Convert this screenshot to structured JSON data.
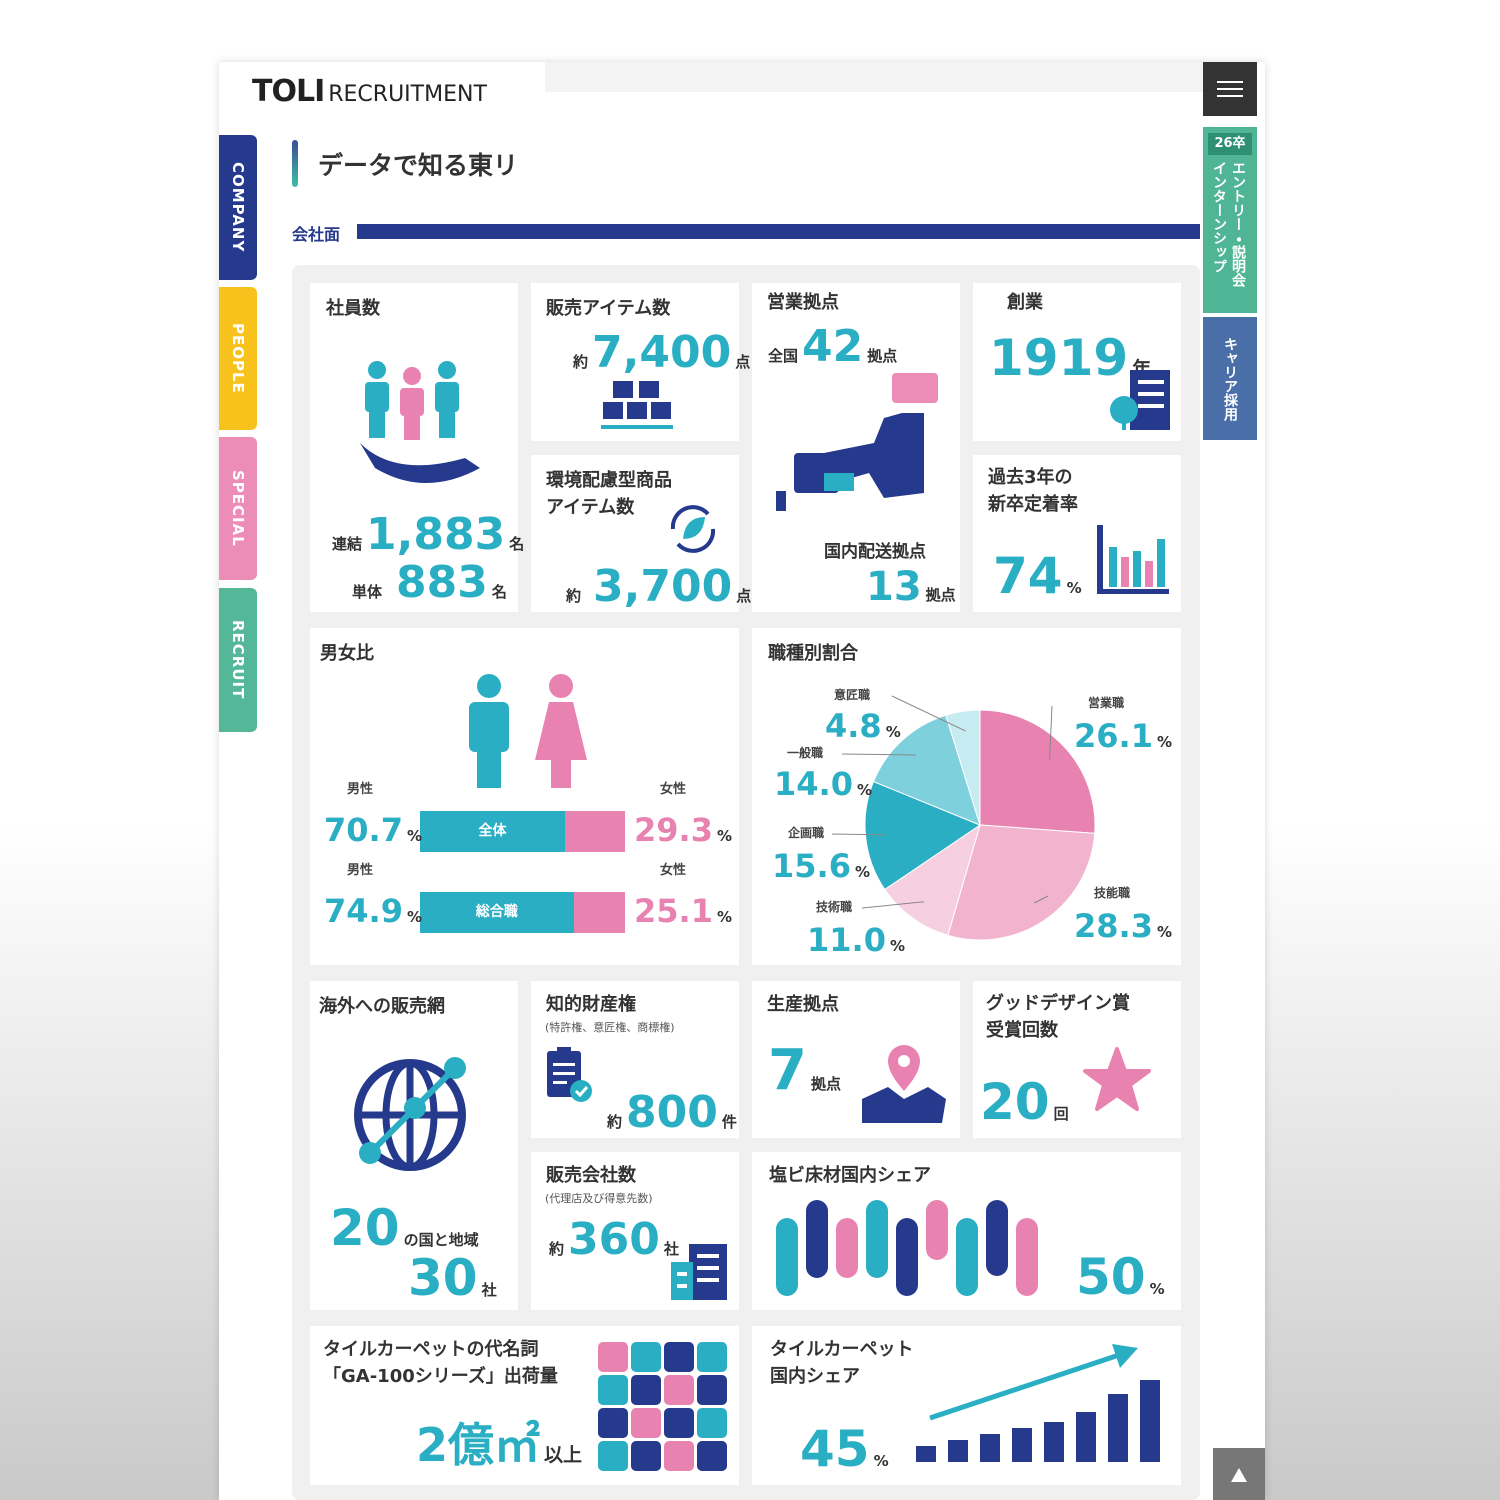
{
  "header": {
    "logo_main": "TOLI",
    "logo_sub": "RECRUITMENT"
  },
  "side_nav": [
    "COMPANY",
    "PEOPLE",
    "SPECIAL",
    "RECRUIT"
  ],
  "right_nav": {
    "badge": "26卒",
    "entry_line1": "エントリー・説明会",
    "entry_line2": "インターンシップ",
    "career": "キャリア採用"
  },
  "page_title": "データで知る東リ",
  "section": "会社面",
  "employees": {
    "title": "社員数",
    "rows": [
      {
        "label": "連結",
        "value": "1,883",
        "unit": "名"
      },
      {
        "label": "単体",
        "value": "883",
        "unit": "名"
      }
    ]
  },
  "items": {
    "title": "販売アイテム数",
    "prefix": "約",
    "value": "7,400",
    "unit": "点"
  },
  "eco": {
    "title": [
      "環境配慮型商品",
      "アイテム数"
    ],
    "prefix": "約",
    "value": "3,700",
    "unit": "点"
  },
  "offices": {
    "title": "営業拠点",
    "prefix": "全国",
    "value": "42",
    "unit": "拠点",
    "sub_title": "国内配送拠点",
    "sub_value": "13",
    "sub_unit": "拠点"
  },
  "founded": {
    "title": "創業",
    "value": "1919",
    "unit": "年"
  },
  "retention": {
    "title": [
      "過去3年の",
      "新卒定着率"
    ],
    "value": "74",
    "unit": "%"
  },
  "gender": {
    "title": "男女比",
    "unit": "%",
    "male_color": "#2aaec3",
    "female_color": "#e882b0",
    "rows": [
      {
        "label": "全体",
        "male_label": "男性",
        "female_label": "女性",
        "male": 70.7,
        "female": 29.3
      },
      {
        "label": "総合職",
        "male_label": "男性",
        "female_label": "女性",
        "male": 74.9,
        "female": 25.1
      }
    ]
  },
  "job": {
    "title": "職種別割合",
    "unit": "%",
    "slices": [
      {
        "name": "営業職",
        "value": 26.1,
        "value_label": "26.1",
        "color": "#e882b0"
      },
      {
        "name": "技能職",
        "value": 28.3,
        "value_label": "28.3",
        "color": "#f2b3cf"
      },
      {
        "name": "技術職",
        "value": 11.0,
        "value_label": "11.0",
        "color": "#f6d0e1"
      },
      {
        "name": "企画職",
        "value": 15.6,
        "value_label": "15.6",
        "color": "#2aaec3"
      },
      {
        "name": "一般職",
        "value": 14.0,
        "value_label": "14.0",
        "color": "#7fd0dd"
      },
      {
        "name": "意匠職",
        "value": 4.8,
        "value_label": "4.8",
        "color": "#c6ebf1"
      }
    ]
  },
  "overseas": {
    "title": "海外への販売網",
    "value1": "20",
    "unit1": "の国と地域",
    "value2": "30",
    "unit2": "社"
  },
  "ip": {
    "title": "知的財産権",
    "note": "(特許権、意匠権、商標権)",
    "prefix": "約",
    "value": "800",
    "unit": "件"
  },
  "production": {
    "title": "生産拠点",
    "value": "7",
    "unit": "拠点"
  },
  "gooddesign": {
    "title": [
      "グッドデザイン賞",
      "受賞回数"
    ],
    "value": "20",
    "unit": "回"
  },
  "dealers": {
    "title": "販売会社数",
    "note": "(代理店及び得意先数)",
    "prefix": "約",
    "value": "360",
    "unit": "社"
  },
  "pvc": {
    "title": "塩ビ床材国内シェア",
    "value": "50",
    "unit": "%"
  },
  "ga100": {
    "title": [
      "タイルカーペットの代名詞",
      "「GA-100シリーズ」出荷量"
    ],
    "value": "2億㎡",
    "unit": "以上"
  },
  "tile": {
    "title": [
      "タイルカーペット",
      "国内シェア"
    ],
    "value": "45",
    "unit": "%"
  }
}
